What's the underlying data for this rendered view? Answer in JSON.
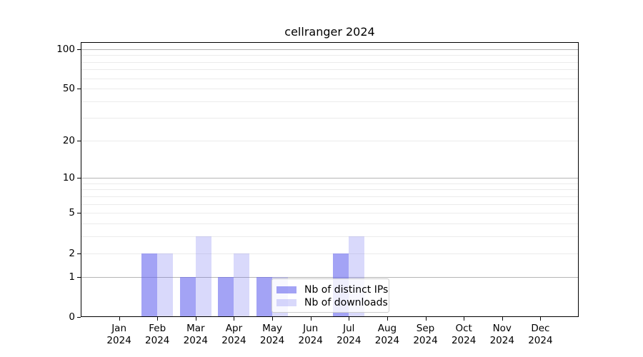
{
  "title": "cellranger 2024",
  "legend": {
    "items": [
      {
        "label": "Nb of distinct IPs",
        "color": "rgba(102,102,238,0.6)"
      },
      {
        "label": "Nb of downloads",
        "color": "rgba(102,102,238,0.25)"
      }
    ]
  },
  "colors": {
    "bar_ips": "rgba(102,102,238,0.6)",
    "bar_downloads": "rgba(102,102,238,0.25)",
    "major_grid": "#b5b5b5",
    "minor_grid": "#ebebeb",
    "axis_frame": "#000000",
    "legend_border": "#cccccc"
  },
  "chart_data": {
    "type": "bar",
    "title": "cellranger 2024",
    "categories": [
      "Jan",
      "Feb",
      "Mar",
      "Apr",
      "May",
      "Jun",
      "Jul",
      "Aug",
      "Sep",
      "Oct",
      "Nov",
      "Dec"
    ],
    "year": "2024",
    "series": [
      {
        "name": "Nb of distinct IPs",
        "color": "rgba(102,102,238,0.6)",
        "values": [
          0,
          2,
          1,
          1,
          1,
          0,
          2,
          0,
          0,
          0,
          0,
          0
        ]
      },
      {
        "name": "Nb of downloads",
        "color": "rgba(102,102,238,0.25)",
        "values": [
          0,
          2,
          3,
          2,
          1,
          0,
          3,
          0,
          0,
          0,
          0,
          0
        ]
      }
    ],
    "xlabel": "",
    "ylabel": "",
    "yscale": "log1p",
    "ylim": [
      0,
      113
    ],
    "yticks": [
      0,
      1,
      2,
      5,
      10,
      20,
      50,
      100
    ],
    "major_grid_values": [
      1,
      10,
      100
    ],
    "minor_grid_values": [
      2,
      3,
      4,
      5,
      6,
      7,
      8,
      9,
      20,
      30,
      40,
      50,
      60,
      70,
      80,
      90
    ],
    "grid": true,
    "legend_position": "inside lower center-right"
  }
}
